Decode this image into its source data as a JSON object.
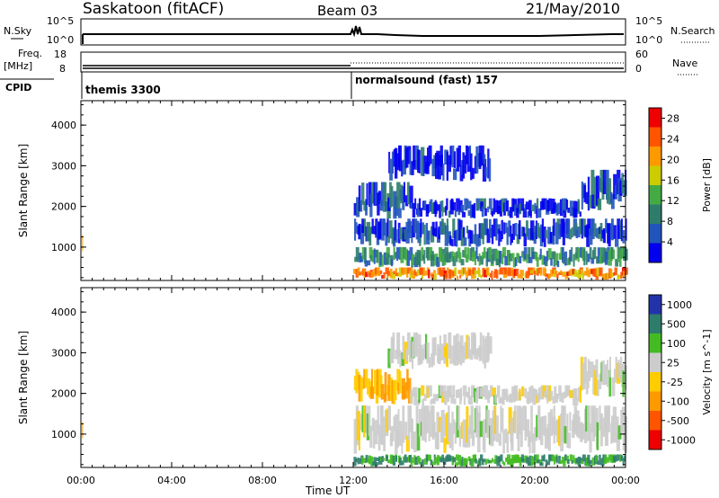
{
  "header": {
    "site": "Saskatoon (fitACF)",
    "beam": "Beam 03",
    "date": "21/May/2010"
  },
  "top_panels": {
    "nsky_label": "N.Sky",
    "nsky_ticks": [
      "10^5",
      "10^0"
    ],
    "nsearch_label": "N.Search",
    "nsearch_ticks": [
      "10^5",
      "10^0"
    ],
    "freq_label": "Freq.",
    "freq_unit": "[MHz]",
    "freq_ticks": [
      "18",
      "8"
    ],
    "nave_label": "Nave",
    "nave_ticks": [
      "60",
      "0"
    ],
    "cpid_label": "CPID",
    "cpid_segments": [
      {
        "name": "themis 3300",
        "start_h": 0
      },
      {
        "name": "normalsound (fast) 157",
        "start_h": 12
      }
    ]
  },
  "chart_data": [
    {
      "type": "heatmap",
      "title": "",
      "xlabel": "Time UT",
      "ylabel": "Slant Range [km]",
      "xlim_hours": [
        0,
        24
      ],
      "ylim": [
        180,
        4600
      ],
      "x_ticks": [
        "00:00",
        "04:00",
        "08:00",
        "12:00",
        "16:00",
        "20:00",
        "00:00"
      ],
      "y_ticks": [
        1000,
        2000,
        3000,
        4000
      ],
      "colorbar": {
        "label": "Power [dB]",
        "ticks": [
          4,
          8,
          12,
          16,
          20,
          24,
          28
        ],
        "range": [
          0,
          30
        ],
        "colors": [
          "#0000ee",
          "#2255bb",
          "#2e7d6b",
          "#44aa44",
          "#cccc00",
          "#ff9900",
          "#ff5500",
          "#ee0000"
        ]
      },
      "bands": [
        {
          "t0": 12.0,
          "t1": 24.0,
          "r0": 200,
          "r1": 500,
          "level": 22
        },
        {
          "t0": 12.0,
          "t1": 24.0,
          "r0": 500,
          "r1": 1000,
          "level": 10
        },
        {
          "t0": 12.0,
          "t1": 24.0,
          "r0": 1000,
          "r1": 1700,
          "level": 5
        },
        {
          "t0": 12.0,
          "t1": 14.5,
          "r0": 1700,
          "r1": 2600,
          "level": 6
        },
        {
          "t0": 14.5,
          "t1": 22.0,
          "r0": 1700,
          "r1": 2200,
          "level": 4
        },
        {
          "t0": 22.0,
          "t1": 24.0,
          "r0": 1900,
          "r1": 2900,
          "level": 6
        },
        {
          "t0": 13.5,
          "t1": 18.0,
          "r0": 2600,
          "r1": 3500,
          "level": 3
        }
      ]
    },
    {
      "type": "heatmap",
      "title": "",
      "xlabel": "Time UT",
      "ylabel": "Slant Range [km]",
      "xlim_hours": [
        0,
        24
      ],
      "ylim": [
        180,
        4600
      ],
      "x_ticks": [
        "00:00",
        "04:00",
        "08:00",
        "12:00",
        "16:00",
        "20:00",
        "00:00"
      ],
      "y_ticks": [
        1000,
        2000,
        3000,
        4000
      ],
      "colorbar": {
        "label": "Velocity [m s^-1]",
        "ticks": [
          1000,
          500,
          100,
          25,
          -25,
          -100,
          -500,
          -1000
        ],
        "colors": [
          "#2233aa",
          "#2e7d6b",
          "#44bb22",
          "#cccccc",
          "#ffcc00",
          "#ff9900",
          "#ff5500",
          "#ee0000"
        ]
      },
      "bands": [
        {
          "t0": 12.0,
          "t1": 24.0,
          "r0": 200,
          "r1": 500,
          "level": 100
        },
        {
          "t0": 12.0,
          "t1": 24.0,
          "r0": 500,
          "r1": 1700,
          "level": 0
        },
        {
          "t0": 12.0,
          "t1": 14.5,
          "r0": 1700,
          "r1": 2600,
          "level": -100
        },
        {
          "t0": 14.5,
          "t1": 22.0,
          "r0": 1700,
          "r1": 2200,
          "level": 0
        },
        {
          "t0": 22.0,
          "t1": 24.0,
          "r0": 1900,
          "r1": 2900,
          "level": 0
        },
        {
          "t0": 13.5,
          "t1": 18.0,
          "r0": 2600,
          "r1": 3500,
          "level": 0
        }
      ]
    }
  ]
}
